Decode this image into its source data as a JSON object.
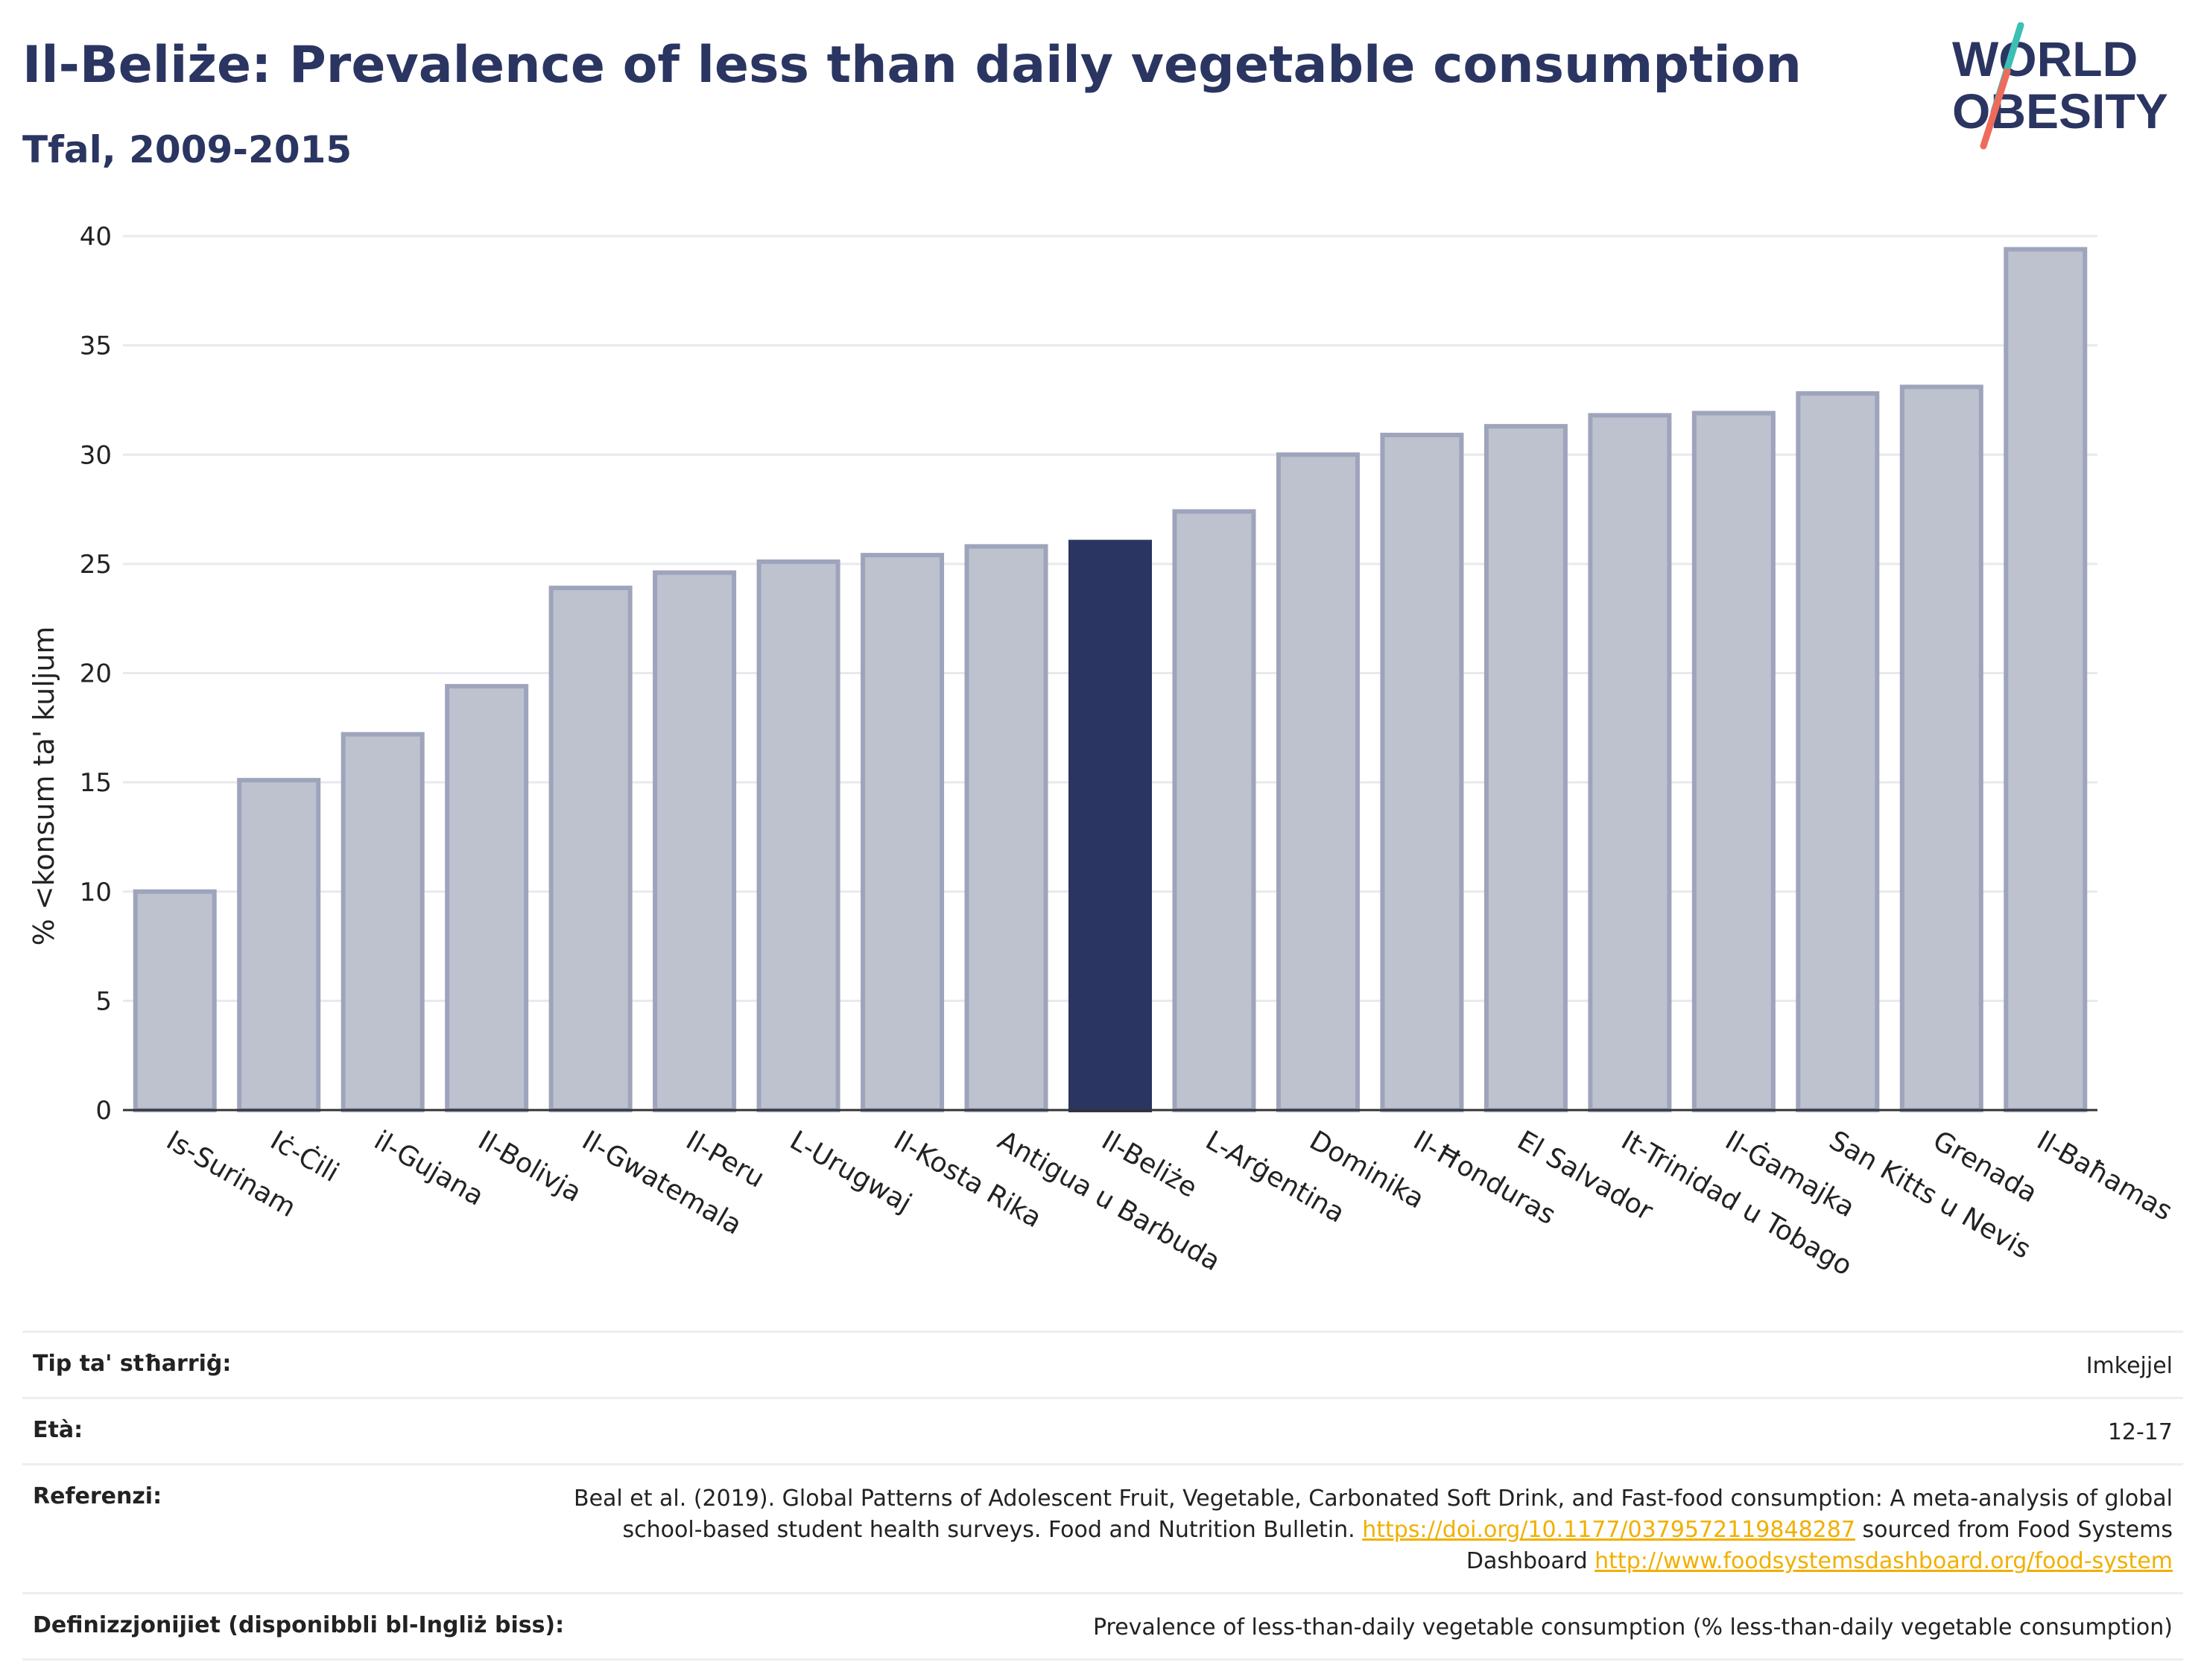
{
  "header": {
    "title": "Il-Beliże: Prevalence of less than daily vegetable consumption",
    "subtitle": "Tfal, 2009-2015",
    "logo": {
      "line1": "WORLD",
      "line2": "OBESITY"
    }
  },
  "colors": {
    "highlight": "#2b3561",
    "bar": "#bec2cf",
    "bar_edge": "#9ea4bb",
    "grid": "#e8e9ee",
    "logo_teal": "#3cbfb4",
    "logo_coral": "#ee6b5a",
    "link": "#f0b000"
  },
  "chart_data": {
    "type": "bar",
    "title": "Il-Beliże: Prevalence of less than daily vegetable consumption",
    "subtitle": "Tfal, 2009-2015",
    "ylabel": "% <konsum ta' kuljum",
    "xlabel": "",
    "ylim": [
      0,
      40
    ],
    "yticks": [
      0,
      5,
      10,
      15,
      20,
      25,
      30,
      35,
      40
    ],
    "grid": true,
    "highlight_category": "Il-Beliże",
    "categories": [
      "Is-Surinam",
      "Iċ-Ċili",
      "il-Gujana",
      "Il-Bolivja",
      "Il-Gwatemala",
      "Il-Peru",
      "L-Urugwaj",
      "Il-Kosta Rika",
      "Antigua u Barbuda",
      "Il-Beliże",
      "L-Arġentina",
      "Dominika",
      "Il-Ħonduras",
      "El Salvador",
      "It-Trinidad u Tobago",
      "Il-Ġamajka",
      "San Kitts u Nevis",
      "Grenada",
      "Il-Baħamas"
    ],
    "values": [
      10.0,
      15.1,
      17.2,
      19.4,
      23.9,
      24.6,
      25.1,
      25.4,
      25.8,
      26.0,
      27.4,
      30.0,
      30.9,
      31.3,
      31.8,
      31.9,
      32.8,
      33.1,
      39.4
    ]
  },
  "info": {
    "rows": [
      {
        "label": "Tip ta' stħarriġ:",
        "value": "Imkejjel"
      },
      {
        "label": "Età:",
        "value": "12-17"
      },
      {
        "label": "Referenzi:",
        "value_before": "Beal et al. (2019). Global Patterns of Adolescent Fruit, Vegetable, Carbonated Soft Drink, and Fast-food consumption: A meta-analysis of global school-based student health surveys. Food and Nutrition Bulletin. ",
        "link1": "https://doi.org/10.1177/0379572119848287",
        "value_middle": " sourced from Food Systems Dashboard ",
        "link2": "http://www.foodsystemsdashboard.org/food-system"
      },
      {
        "label": "Definizzjonijiet (disponibbli bl-Ingliż biss):",
        "value": "Prevalence of less-than-daily vegetable consumption (% less-than-daily vegetable consumption)"
      }
    ]
  }
}
